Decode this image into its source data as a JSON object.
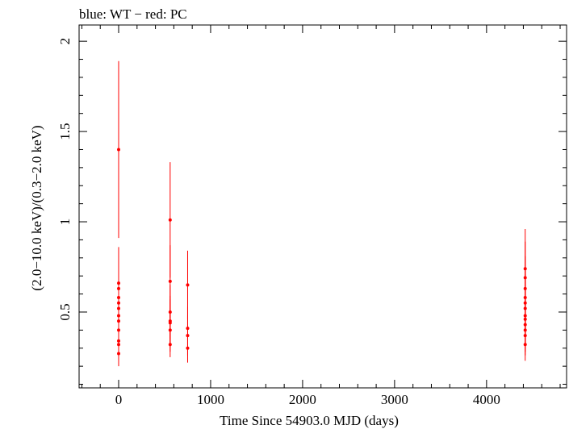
{
  "chart_data": {
    "type": "scatter",
    "title": "blue: WT − red: PC",
    "xlabel": "Time Since 54903.0 MJD (days)",
    "ylabel": "(2.0−10.0 keV)/(0.3−2.0 keV)",
    "xlim": [
      -430,
      4870
    ],
    "ylim": [
      0.08,
      2.09
    ],
    "x_ticks": [
      0,
      1000,
      2000,
      3000,
      4000
    ],
    "x_tick_labels": [
      "0",
      "1000",
      "2000",
      "3000",
      "4000"
    ],
    "y_ticks": [
      0.5,
      1,
      1.5,
      2
    ],
    "y_tick_labels": [
      "0.5",
      "1",
      "1.5",
      "2"
    ],
    "grid": false,
    "legend": "none",
    "series": [
      {
        "name": "PC",
        "color": "#ff0000",
        "points": [
          {
            "x": 0,
            "y": 1.4,
            "yerr": 0.49
          },
          {
            "x": 0,
            "y": 0.66,
            "yerr": 0.2
          },
          {
            "x": 0,
            "y": 0.63,
            "yerr": 0.19
          },
          {
            "x": 0,
            "y": 0.58,
            "yerr": 0.17
          },
          {
            "x": 0,
            "y": 0.55,
            "yerr": 0.16
          },
          {
            "x": 0,
            "y": 0.52,
            "yerr": 0.15
          },
          {
            "x": 0,
            "y": 0.48,
            "yerr": 0.14
          },
          {
            "x": 0,
            "y": 0.45,
            "yerr": 0.13
          },
          {
            "x": 0,
            "y": 0.4,
            "yerr": 0.12
          },
          {
            "x": 0,
            "y": 0.34,
            "yerr": 0.1
          },
          {
            "x": 0,
            "y": 0.32,
            "yerr": 0.09
          },
          {
            "x": 0,
            "y": 0.27,
            "yerr": 0.07
          },
          {
            "x": 560,
            "y": 1.01,
            "yerr": 0.32
          },
          {
            "x": 560,
            "y": 0.67,
            "yerr": 0.2
          },
          {
            "x": 560,
            "y": 0.5,
            "yerr": 0.15
          },
          {
            "x": 560,
            "y": 0.45,
            "yerr": 0.14
          },
          {
            "x": 560,
            "y": 0.44,
            "yerr": 0.13
          },
          {
            "x": 560,
            "y": 0.4,
            "yerr": 0.12
          },
          {
            "x": 560,
            "y": 0.32,
            "yerr": 0.07
          },
          {
            "x": 750,
            "y": 0.65,
            "yerr": 0.19
          },
          {
            "x": 750,
            "y": 0.41,
            "yerr": 0.12
          },
          {
            "x": 750,
            "y": 0.37,
            "yerr": 0.11
          },
          {
            "x": 750,
            "y": 0.3,
            "yerr": 0.08
          },
          {
            "x": 4420,
            "y": 0.74,
            "yerr": 0.22
          },
          {
            "x": 4420,
            "y": 0.69,
            "yerr": 0.2
          },
          {
            "x": 4420,
            "y": 0.63,
            "yerr": 0.18
          },
          {
            "x": 4420,
            "y": 0.58,
            "yerr": 0.17
          },
          {
            "x": 4420,
            "y": 0.55,
            "yerr": 0.16
          },
          {
            "x": 4420,
            "y": 0.52,
            "yerr": 0.15
          },
          {
            "x": 4420,
            "y": 0.48,
            "yerr": 0.14
          },
          {
            "x": 4420,
            "y": 0.46,
            "yerr": 0.13
          },
          {
            "x": 4420,
            "y": 0.43,
            "yerr": 0.12
          },
          {
            "x": 4420,
            "y": 0.4,
            "yerr": 0.12
          },
          {
            "x": 4420,
            "y": 0.37,
            "yerr": 0.11
          },
          {
            "x": 4420,
            "y": 0.32,
            "yerr": 0.09
          }
        ]
      }
    ]
  }
}
